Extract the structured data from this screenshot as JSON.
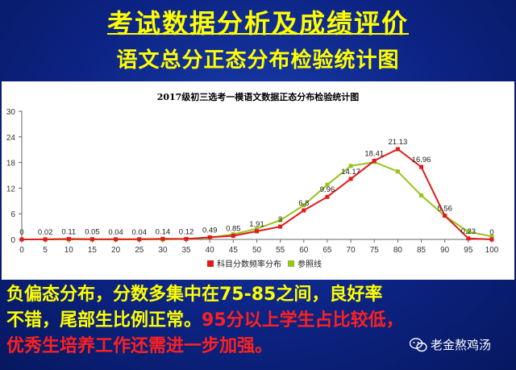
{
  "header": {
    "title": "考试数据分析及成绩评价",
    "subtitle": "语文总分正态分布检验统计图"
  },
  "chart_data": {
    "type": "line",
    "title": "2017级初三选考一模语文数据正态分布检验统计图",
    "xlabel": "",
    "ylabel": "",
    "x": [
      0,
      5,
      10,
      15,
      20,
      25,
      30,
      35,
      40,
      45,
      50,
      55,
      60,
      65,
      70,
      75,
      80,
      85,
      90,
      95,
      100
    ],
    "ylim": [
      0,
      30
    ],
    "yticks": [
      0,
      6,
      12,
      18,
      24,
      30
    ],
    "grid": false,
    "legend_position": "bottom",
    "series": [
      {
        "name": "科目分数频率分布",
        "color": "#e11a1a",
        "values": [
          0,
          0.02,
          0.11,
          0.05,
          0.04,
          0.04,
          0.14,
          0.12,
          0.49,
          0.85,
          1.91,
          3,
          6.8,
          9.96,
          14.17,
          18.41,
          21.13,
          16.96,
          5.56,
          0.23,
          0
        ],
        "labels": [
          "0",
          "0.02",
          "0.11",
          "0.05",
          "0.04",
          "0.04",
          "0.14",
          "0.12",
          "0.49",
          "0.85",
          "1.91",
          "3",
          "6.8",
          "9.96",
          "14.17",
          "18.41",
          "21.13",
          "16.96",
          "5.56",
          "0.23",
          "0"
        ]
      },
      {
        "name": "参照线",
        "color": "#99c31c",
        "values": [
          0,
          0,
          0,
          0,
          0,
          0,
          0,
          0.1,
          0.4,
          1.2,
          2.5,
          4.5,
          8,
          12.8,
          17.2,
          18.1,
          15.9,
          10.3,
          5.5,
          1.8,
          0.7
        ]
      }
    ]
  },
  "caption": {
    "line1": "负偏态分布，分数多集中在75-85之间，良好率",
    "line2a": "不错，尾部生比例正常。",
    "line2b": "95分以上学生占比较低，",
    "line3": "优秀生培养工作还需进一步加强。"
  },
  "watermark": {
    "text": "老金熬鸡汤",
    "icon": "wechat-icon"
  }
}
